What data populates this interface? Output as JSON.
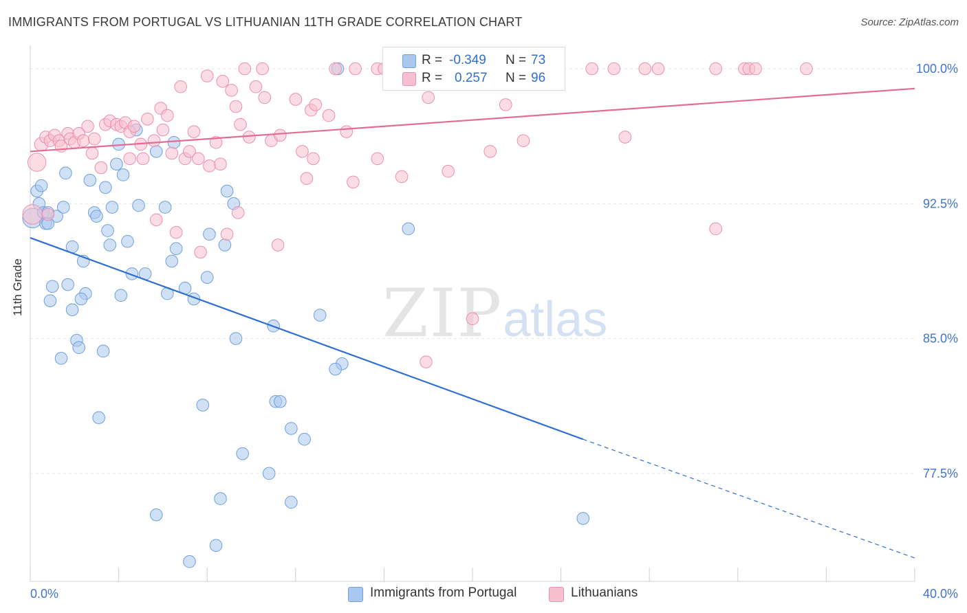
{
  "header": {
    "title": "IMMIGRANTS FROM PORTUGAL VS LITHUANIAN 11TH GRADE CORRELATION CHART",
    "source": "Source: ZipAtlas.com"
  },
  "watermark": {
    "zip": "ZIP",
    "atlas": "atlas"
  },
  "legend": {
    "rows": [
      {
        "r_label": "R =",
        "r_value": "-0.349",
        "n_label": "N =",
        "n_value": "73"
      },
      {
        "r_label": "R =",
        "r_value": "0.257",
        "n_label": "N =",
        "n_value": "96"
      }
    ]
  },
  "bottom_legend": {
    "blue": "Immigrants from Portugal",
    "pink": "Lithuanians"
  },
  "colors": {
    "blue_fill": "#a9c8ef",
    "blue_stroke": "#6f9fdd",
    "blue_line": "#2f6fd0",
    "pink_fill": "#f7bfd0",
    "pink_stroke": "#eb8fae",
    "pink_line": "#e46b93",
    "grid": "#e5e5e5",
    "tick_label": "#3f74cf"
  },
  "chart_data": {
    "type": "scatter",
    "title": "IMMIGRANTS FROM PORTUGAL VS LITHUANIAN 11TH GRADE CORRELATION CHART",
    "xlabel": "",
    "ylabel": "11th Grade",
    "xlim": [
      0,
      40
    ],
    "ylim": [
      71.5,
      101.3
    ],
    "x_tick_labels": [
      "0.0%",
      "40.0%"
    ],
    "y_ticks": [
      77.5,
      85.0,
      92.5,
      100.0
    ],
    "y_tick_labels": [
      "77.5%",
      "85.0%",
      "92.5%",
      "100.0%"
    ],
    "grid": true,
    "legend_position": "top-center",
    "series": [
      {
        "name": "Immigrants from Portugal",
        "r": -0.349,
        "n": 73,
        "trend": {
          "x0": 0.0,
          "y0": 90.6,
          "x1": 25.0,
          "y1": 79.4,
          "dash_to_x": 40.0,
          "dash_to_y": 72.8
        },
        "points": [
          [
            0.1,
            91.7,
            13
          ],
          [
            0.3,
            93.2,
            8
          ],
          [
            0.4,
            92.5,
            8
          ],
          [
            0.5,
            93.5,
            8
          ],
          [
            0.6,
            92.0,
            8
          ],
          [
            0.7,
            91.4,
            8
          ],
          [
            0.8,
            91.4,
            8
          ],
          [
            1.2,
            91.8,
            8
          ],
          [
            1.5,
            92.3,
            8
          ],
          [
            1.6,
            94.2,
            8
          ],
          [
            1.9,
            90.1,
            8
          ],
          [
            2.4,
            89.3,
            8
          ],
          [
            2.7,
            93.8,
            8
          ],
          [
            2.9,
            92.0,
            8
          ],
          [
            3.0,
            91.8,
            8
          ],
          [
            3.4,
            93.4,
            8
          ],
          [
            3.5,
            91.0,
            8
          ],
          [
            3.6,
            90.2,
            8
          ],
          [
            3.7,
            92.3,
            8
          ],
          [
            3.9,
            94.7,
            8
          ],
          [
            4.0,
            95.8,
            8
          ],
          [
            4.2,
            94.1,
            8
          ],
          [
            4.4,
            90.4,
            8
          ],
          [
            4.6,
            88.6,
            8
          ],
          [
            4.8,
            96.6,
            8
          ],
          [
            4.9,
            92.4,
            8
          ],
          [
            5.2,
            88.6,
            8
          ],
          [
            5.7,
            95.4,
            8
          ],
          [
            6.1,
            92.3,
            8
          ],
          [
            6.4,
            89.3,
            8
          ],
          [
            6.6,
            90.0,
            8
          ],
          [
            6.5,
            95.9,
            8
          ],
          [
            7.0,
            87.8,
            8
          ],
          [
            8.1,
            90.8,
            8
          ],
          [
            8.9,
            93.2,
            8
          ],
          [
            9.2,
            92.5,
            8
          ],
          [
            8.8,
            90.2,
            8
          ],
          [
            8.0,
            88.4,
            8
          ],
          [
            6.2,
            87.5,
            8
          ],
          [
            7.4,
            87.2,
            8
          ],
          [
            1.0,
            87.9,
            8
          ],
          [
            1.7,
            88.0,
            8
          ],
          [
            2.5,
            87.5,
            8
          ],
          [
            2.3,
            87.2,
            8
          ],
          [
            0.9,
            87.1,
            8
          ],
          [
            1.9,
            86.6,
            8
          ],
          [
            4.1,
            87.4,
            8
          ],
          [
            13.9,
            100.0,
            8
          ],
          [
            17.1,
            91.1,
            8
          ],
          [
            13.1,
            86.3,
            8
          ],
          [
            11.0,
            85.7,
            8
          ],
          [
            2.1,
            84.9,
            8
          ],
          [
            2.2,
            84.5,
            8
          ],
          [
            3.3,
            84.3,
            8
          ],
          [
            1.4,
            83.9,
            8
          ],
          [
            9.3,
            85.0,
            8
          ],
          [
            14.1,
            83.6,
            8
          ],
          [
            13.8,
            83.3,
            8
          ],
          [
            11.1,
            81.5,
            8
          ],
          [
            11.3,
            81.5,
            8
          ],
          [
            7.8,
            81.3,
            8
          ],
          [
            3.1,
            80.6,
            8
          ],
          [
            11.8,
            80.0,
            8
          ],
          [
            12.4,
            79.4,
            8
          ],
          [
            9.6,
            78.6,
            8
          ],
          [
            10.8,
            77.5,
            8
          ],
          [
            8.6,
            76.1,
            8
          ],
          [
            11.8,
            75.9,
            8
          ],
          [
            5.7,
            75.2,
            8
          ],
          [
            25.0,
            75.0,
            8
          ],
          [
            8.4,
            73.5,
            8
          ],
          [
            7.2,
            72.6,
            8
          ],
          [
            0.8,
            92.0,
            8
          ]
        ]
      },
      {
        "name": "Lithuanians",
        "r": 0.257,
        "n": 96,
        "trend": {
          "x0": 0.0,
          "y0": 95.4,
          "x1": 40.0,
          "y1": 98.9
        },
        "points": [
          [
            0.1,
            91.9,
            13
          ],
          [
            0.3,
            94.8,
            12
          ],
          [
            0.5,
            95.8,
            9
          ],
          [
            0.7,
            96.2,
            8
          ],
          [
            0.9,
            96.0,
            8
          ],
          [
            1.1,
            96.3,
            8
          ],
          [
            1.3,
            96.0,
            8
          ],
          [
            1.4,
            95.7,
            8
          ],
          [
            1.7,
            96.4,
            8
          ],
          [
            1.8,
            96.1,
            8
          ],
          [
            2.0,
            95.9,
            8
          ],
          [
            2.2,
            96.4,
            8
          ],
          [
            2.4,
            96.0,
            8
          ],
          [
            2.6,
            96.8,
            8
          ],
          [
            2.9,
            96.1,
            8
          ],
          [
            2.8,
            95.3,
            8
          ],
          [
            3.2,
            94.5,
            8
          ],
          [
            3.4,
            96.9,
            8
          ],
          [
            3.6,
            97.1,
            8
          ],
          [
            3.9,
            96.9,
            8
          ],
          [
            4.1,
            96.8,
            8
          ],
          [
            4.3,
            97.0,
            8
          ],
          [
            4.5,
            96.5,
            8
          ],
          [
            4.7,
            96.8,
            8
          ],
          [
            4.5,
            95.0,
            8
          ],
          [
            5.0,
            95.8,
            8
          ],
          [
            5.1,
            95.0,
            8
          ],
          [
            5.3,
            97.2,
            8
          ],
          [
            5.6,
            96.0,
            8
          ],
          [
            5.9,
            97.8,
            8
          ],
          [
            6.0,
            96.6,
            8
          ],
          [
            6.2,
            97.4,
            8
          ],
          [
            6.4,
            95.3,
            8
          ],
          [
            6.8,
            99.0,
            8
          ],
          [
            7.0,
            95.0,
            8
          ],
          [
            7.2,
            95.4,
            8
          ],
          [
            7.4,
            96.5,
            8
          ],
          [
            7.6,
            95.0,
            8
          ],
          [
            8.0,
            99.6,
            8
          ],
          [
            8.1,
            94.6,
            8
          ],
          [
            8.4,
            95.9,
            8
          ],
          [
            8.6,
            94.7,
            8
          ],
          [
            8.7,
            99.3,
            8
          ],
          [
            9.1,
            98.8,
            8
          ],
          [
            9.3,
            97.9,
            8
          ],
          [
            9.5,
            96.9,
            8
          ],
          [
            9.9,
            96.2,
            8
          ],
          [
            10.2,
            99.0,
            8
          ],
          [
            10.6,
            98.4,
            8
          ],
          [
            10.9,
            96.0,
            8
          ],
          [
            11.3,
            96.3,
            8
          ],
          [
            12.0,
            98.3,
            8
          ],
          [
            12.3,
            95.4,
            8
          ],
          [
            12.5,
            93.9,
            8
          ],
          [
            12.7,
            97.7,
            8
          ],
          [
            12.9,
            98.0,
            8
          ],
          [
            12.8,
            95.0,
            8
          ],
          [
            13.5,
            97.4,
            8
          ],
          [
            14.3,
            96.5,
            8
          ],
          [
            14.6,
            93.7,
            8
          ],
          [
            15.7,
            95.0,
            8
          ],
          [
            16.8,
            94.0,
            8
          ],
          [
            18.0,
            98.4,
            8
          ],
          [
            18.9,
            94.3,
            8
          ],
          [
            20.8,
            95.4,
            8
          ],
          [
            21.5,
            98.0,
            8
          ],
          [
            22.3,
            96.0,
            8
          ],
          [
            26.9,
            96.2,
            8
          ],
          [
            31.0,
            91.1,
            8
          ],
          [
            9.7,
            100.0,
            8
          ],
          [
            10.5,
            100.0,
            8
          ],
          [
            13.8,
            100.0,
            8
          ],
          [
            14.7,
            100.0,
            8
          ],
          [
            15.7,
            100.0,
            8
          ],
          [
            16.0,
            100.0,
            8
          ],
          [
            17.6,
            100.0,
            8
          ],
          [
            19.5,
            100.0,
            8
          ],
          [
            23.4,
            100.0,
            8
          ],
          [
            25.4,
            100.0,
            8
          ],
          [
            26.4,
            100.0,
            8
          ],
          [
            27.8,
            100.0,
            8
          ],
          [
            28.4,
            100.0,
            8
          ],
          [
            31.0,
            100.0,
            8
          ],
          [
            32.3,
            100.0,
            8
          ],
          [
            32.5,
            100.0,
            8
          ],
          [
            32.8,
            100.0,
            8
          ],
          [
            35.1,
            100.0,
            8
          ],
          [
            6.6,
            90.9,
            8
          ],
          [
            7.7,
            89.8,
            8
          ],
          [
            8.9,
            90.8,
            8
          ],
          [
            9.4,
            92.0,
            8
          ],
          [
            11.2,
            90.2,
            8
          ],
          [
            5.7,
            91.6,
            8
          ],
          [
            20.0,
            86.1,
            8
          ],
          [
            17.9,
            83.7,
            8
          ],
          [
            0.8,
            91.9,
            8
          ]
        ]
      }
    ]
  }
}
